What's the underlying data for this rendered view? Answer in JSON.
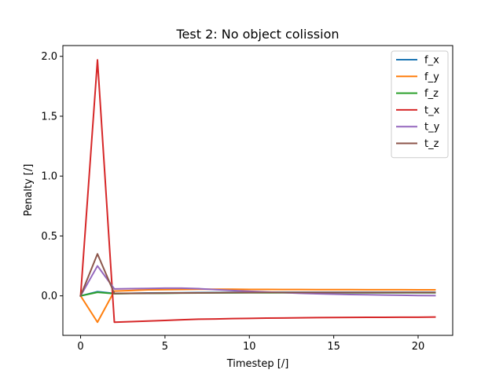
{
  "chart_data": {
    "type": "line",
    "title": "Test 2: No object colission",
    "xlabel": "Timestep [/]",
    "ylabel": "Penalty [/]",
    "xlim": [
      -1.05,
      22.05
    ],
    "ylim": [
      -0.33,
      2.09
    ],
    "xticks": [
      0,
      5,
      10,
      15,
      20
    ],
    "yticks": [
      0.0,
      0.5,
      1.0,
      1.5,
      2.0
    ],
    "xtick_labels": [
      "0",
      "5",
      "10",
      "15",
      "20"
    ],
    "ytick_labels": [
      "0.0",
      "0.5",
      "1.0",
      "1.5",
      "2.0"
    ],
    "grid": false,
    "legend_position": "top-right",
    "x": [
      0,
      1,
      2,
      3,
      4,
      5,
      6,
      7,
      8,
      9,
      10,
      11,
      12,
      13,
      14,
      15,
      16,
      17,
      18,
      19,
      20,
      21
    ],
    "series": [
      {
        "name": "f_x",
        "color": "#1f77b4",
        "values": [
          0,
          0.035,
          0.02,
          0.022,
          0.024,
          0.025,
          0.026,
          0.027,
          0.028,
          0.029,
          0.03,
          0.03,
          0.03,
          0.03,
          0.03,
          0.03,
          0.03,
          0.03,
          0.03,
          0.03,
          0.03,
          0.03
        ]
      },
      {
        "name": "f_y",
        "color": "#ff7f0e",
        "values": [
          0,
          -0.22,
          0.04,
          0.045,
          0.05,
          0.052,
          0.054,
          0.055,
          0.055,
          0.055,
          0.054,
          0.054,
          0.053,
          0.053,
          0.052,
          0.052,
          0.052,
          0.051,
          0.051,
          0.051,
          0.05,
          0.05
        ]
      },
      {
        "name": "f_z",
        "color": "#2ca02c",
        "values": [
          0,
          0.03,
          0.018,
          0.02,
          0.021,
          0.022,
          0.023,
          0.024,
          0.025,
          0.025,
          0.026,
          0.026,
          0.026,
          0.026,
          0.026,
          0.026,
          0.026,
          0.026,
          0.026,
          0.026,
          0.026,
          0.026
        ]
      },
      {
        "name": "t_x",
        "color": "#d62728",
        "values": [
          0,
          1.97,
          -0.22,
          -0.215,
          -0.21,
          -0.205,
          -0.2,
          -0.195,
          -0.193,
          -0.19,
          -0.188,
          -0.186,
          -0.185,
          -0.183,
          -0.182,
          -0.181,
          -0.18,
          -0.179,
          -0.179,
          -0.178,
          -0.178,
          -0.177
        ]
      },
      {
        "name": "t_y",
        "color": "#9467bd",
        "values": [
          0,
          0.25,
          0.058,
          0.06,
          0.062,
          0.064,
          0.064,
          0.06,
          0.052,
          0.045,
          0.038,
          0.032,
          0.027,
          0.022,
          0.018,
          0.014,
          0.011,
          0.009,
          0.007,
          0.005,
          0.003,
          0.002
        ]
      },
      {
        "name": "t_z",
        "color": "#8c564b",
        "values": [
          0,
          0.35,
          0.02,
          0.021,
          0.022,
          0.023,
          0.024,
          0.025,
          0.026,
          0.027,
          0.027,
          0.028,
          0.028,
          0.028,
          0.028,
          0.028,
          0.028,
          0.028,
          0.028,
          0.028,
          0.028,
          0.028
        ]
      }
    ]
  }
}
